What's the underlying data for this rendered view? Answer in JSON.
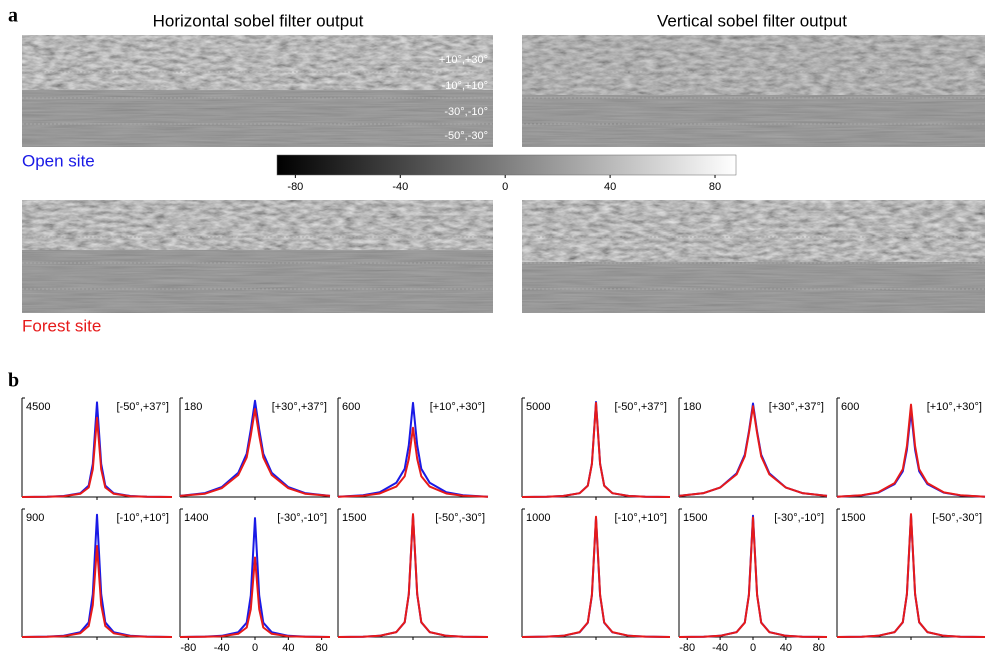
{
  "panel_labels": [
    "a",
    "b"
  ],
  "panel_a": {
    "titles": [
      "Horizontal sobel filter output",
      "Vertical sobel filter output"
    ],
    "sites": [
      "Open site",
      "Forest site"
    ],
    "bands": [
      "+10°,+30°",
      "-10°,+10°",
      "-30°,-10°",
      "-50°,-30°"
    ],
    "colorbar": {
      "xlim": [
        -87,
        88
      ],
      "xticks": [
        -80,
        -40,
        0,
        40,
        80
      ]
    }
  },
  "chart_data": [
    {
      "type": "line",
      "title": "[-50°,+37°]",
      "x": [
        -90,
        -60,
        -40,
        -20,
        -10,
        -5,
        0,
        5,
        10,
        20,
        40,
        60,
        90
      ],
      "xlim": [
        -90,
        90
      ],
      "ylim": [
        0,
        4500
      ],
      "yticks": [
        4500
      ],
      "series": [
        {
          "color": "#1a1ae6",
          "values": [
            0,
            13,
            45,
            172,
            516,
            1505,
            4300,
            1505,
            516,
            172,
            45,
            13,
            0
          ]
        },
        {
          "color": "#e61a1a",
          "values": [
            0,
            11,
            36,
            144,
            432,
            1260,
            3600,
            1260,
            432,
            144,
            36,
            11,
            0
          ]
        }
      ]
    },
    {
      "type": "line",
      "title": "[+30°,+37°]",
      "x": [
        -90,
        -60,
        -40,
        -20,
        -10,
        -5,
        0,
        5,
        10,
        20,
        40,
        60,
        90
      ],
      "xlim": [
        -90,
        90
      ],
      "ylim": [
        0,
        180
      ],
      "yticks": [
        180
      ],
      "series": [
        {
          "color": "#1a1ae6",
          "values": [
            2,
            7,
            18,
            44,
            79,
            123,
            175,
            123,
            79,
            44,
            18,
            7,
            2
          ]
        },
        {
          "color": "#e61a1a",
          "values": [
            2,
            6,
            16,
            40,
            72,
            112,
            160,
            112,
            72,
            40,
            16,
            6,
            2
          ]
        }
      ]
    },
    {
      "type": "line",
      "title": "[+10°,+30°]",
      "x": [
        -90,
        -60,
        -40,
        -20,
        -10,
        -5,
        0,
        5,
        10,
        20,
        40,
        60,
        90
      ],
      "xlim": [
        -90,
        90
      ],
      "ylim": [
        0,
        600
      ],
      "yticks": [
        600
      ],
      "series": [
        {
          "color": "#1a1ae6",
          "values": [
            2,
            11,
            29,
            86,
            171,
            314,
            570,
            314,
            171,
            86,
            29,
            11,
            2
          ]
        },
        {
          "color": "#e61a1a",
          "values": [
            1,
            8,
            21,
            63,
            126,
            231,
            420,
            231,
            126,
            63,
            21,
            8,
            1
          ]
        }
      ]
    },
    {
      "type": "line",
      "title": "[-10°,+10°]",
      "x": [
        -90,
        -60,
        -40,
        -20,
        -10,
        -5,
        0,
        5,
        10,
        20,
        40,
        60,
        90
      ],
      "xlim": [
        -90,
        90
      ],
      "ylim": [
        0,
        900
      ],
      "yticks": [
        900
      ],
      "series": [
        {
          "color": "#1a1ae6",
          "values": [
            0,
            3,
            9,
            34,
            103,
            301,
            860,
            301,
            103,
            34,
            9,
            3,
            0
          ]
        },
        {
          "color": "#e61a1a",
          "values": [
            0,
            2,
            6,
            26,
            77,
            224,
            640,
            224,
            77,
            26,
            6,
            2,
            0
          ]
        }
      ]
    },
    {
      "type": "line",
      "title": "[-30°,-10°]",
      "x": [
        -90,
        -60,
        -40,
        -20,
        -10,
        -5,
        0,
        5,
        10,
        20,
        40,
        60,
        90
      ],
      "xlim": [
        -90,
        90
      ],
      "ylim": [
        0,
        1400
      ],
      "yticks": [
        1400
      ],
      "xticks": [
        -80,
        -40,
        0,
        40,
        80
      ],
      "series": [
        {
          "color": "#1a1ae6",
          "values": [
            0,
            4,
            13,
            52,
            156,
            455,
            1300,
            455,
            156,
            52,
            13,
            4,
            0
          ]
        },
        {
          "color": "#e61a1a",
          "values": [
            0,
            3,
            9,
            35,
            104,
            305,
            870,
            305,
            104,
            35,
            9,
            3,
            0
          ]
        }
      ]
    },
    {
      "type": "line",
      "title": "[-50°,-30°]",
      "x": [
        -90,
        -60,
        -40,
        -20,
        -10,
        -5,
        0,
        5,
        10,
        20,
        40,
        60,
        90
      ],
      "xlim": [
        -90,
        90
      ],
      "ylim": [
        0,
        1500
      ],
      "yticks": [
        1500
      ],
      "series": [
        {
          "color": "#1a1ae6",
          "values": [
            0,
            4,
            14,
            57,
            172,
            500,
            1430,
            500,
            172,
            57,
            14,
            4,
            0
          ]
        },
        {
          "color": "#e61a1a",
          "values": [
            0,
            4,
            14,
            58,
            173,
            504,
            1440,
            504,
            173,
            58,
            14,
            4,
            0
          ]
        }
      ]
    },
    {
      "type": "line",
      "title": "[-50°,+37°]",
      "x": [
        -90,
        -60,
        -40,
        -20,
        -10,
        -5,
        0,
        5,
        10,
        20,
        40,
        60,
        90
      ],
      "xlim": [
        -90,
        90
      ],
      "ylim": [
        0,
        5000
      ],
      "yticks": [
        5000
      ],
      "series": [
        {
          "color": "#1a1ae6",
          "values": [
            0,
            14,
            48,
            192,
            576,
            1680,
            4800,
            1680,
            576,
            192,
            48,
            14,
            0
          ]
        },
        {
          "color": "#e61a1a",
          "values": [
            0,
            14,
            48,
            190,
            570,
            1663,
            4750,
            1663,
            570,
            190,
            48,
            14,
            0
          ]
        }
      ]
    },
    {
      "type": "line",
      "title": "[+30°,+37°]",
      "x": [
        -90,
        -60,
        -40,
        -20,
        -10,
        -5,
        0,
        5,
        10,
        20,
        40,
        60,
        90
      ],
      "xlim": [
        -90,
        90
      ],
      "ylim": [
        0,
        180
      ],
      "yticks": [
        180
      ],
      "series": [
        {
          "color": "#1a1ae6",
          "values": [
            2,
            7,
            17,
            43,
            77,
            119,
            170,
            119,
            77,
            43,
            17,
            7,
            2
          ]
        },
        {
          "color": "#e61a1a",
          "values": [
            2,
            7,
            17,
            41,
            74,
            116,
            165,
            116,
            74,
            41,
            17,
            7,
            2
          ]
        }
      ]
    },
    {
      "type": "line",
      "title": "[+10°,+30°]",
      "x": [
        -90,
        -60,
        -40,
        -20,
        -10,
        -5,
        0,
        5,
        10,
        20,
        40,
        60,
        90
      ],
      "xlim": [
        -90,
        90
      ],
      "ylim": [
        0,
        600
      ],
      "yticks": [
        600
      ],
      "series": [
        {
          "color": "#1a1ae6",
          "values": [
            2,
            10,
            26,
            78,
            156,
            286,
            520,
            286,
            156,
            78,
            26,
            10,
            2
          ]
        },
        {
          "color": "#e61a1a",
          "values": [
            2,
            11,
            28,
            84,
            168,
            308,
            560,
            308,
            168,
            84,
            28,
            11,
            2
          ]
        }
      ]
    },
    {
      "type": "line",
      "title": "[-10°,+10°]",
      "x": [
        -90,
        -60,
        -40,
        -20,
        -10,
        -5,
        0,
        5,
        10,
        20,
        40,
        60,
        90
      ],
      "xlim": [
        -90,
        90
      ],
      "ylim": [
        0,
        1000
      ],
      "yticks": [
        1000
      ],
      "series": [
        {
          "color": "#1a1ae6",
          "values": [
            0,
            3,
            9,
            37,
            112,
            326,
            930,
            326,
            112,
            37,
            9,
            3,
            0
          ]
        },
        {
          "color": "#e61a1a",
          "values": [
            0,
            3,
            9,
            38,
            113,
            329,
            940,
            329,
            113,
            38,
            9,
            3,
            0
          ]
        }
      ]
    },
    {
      "type": "line",
      "title": "[-30°,-10°]",
      "x": [
        -90,
        -60,
        -40,
        -20,
        -10,
        -5,
        0,
        5,
        10,
        20,
        40,
        60,
        90
      ],
      "xlim": [
        -90,
        90
      ],
      "ylim": [
        0,
        1500
      ],
      "yticks": [
        1500
      ],
      "xticks": [
        -80,
        -40,
        0,
        40,
        80
      ],
      "series": [
        {
          "color": "#1a1ae6",
          "values": [
            0,
            4,
            14,
            57,
            170,
            497,
            1420,
            497,
            170,
            57,
            14,
            4,
            0
          ]
        },
        {
          "color": "#e61a1a",
          "values": [
            0,
            4,
            14,
            56,
            168,
            490,
            1400,
            490,
            168,
            56,
            14,
            4,
            0
          ]
        }
      ]
    },
    {
      "type": "line",
      "title": "[-50°,-30°]",
      "x": [
        -90,
        -60,
        -40,
        -20,
        -10,
        -5,
        0,
        5,
        10,
        20,
        40,
        60,
        90
      ],
      "xlim": [
        -90,
        90
      ],
      "ylim": [
        0,
        1500
      ],
      "yticks": [
        1500
      ],
      "series": [
        {
          "color": "#1a1ae6",
          "values": [
            0,
            4,
            14,
            57,
            172,
            500,
            1430,
            500,
            172,
            57,
            14,
            4,
            0
          ]
        },
        {
          "color": "#e61a1a",
          "values": [
            0,
            4,
            14,
            58,
            173,
            504,
            1440,
            504,
            173,
            58,
            14,
            4,
            0
          ]
        }
      ]
    }
  ]
}
